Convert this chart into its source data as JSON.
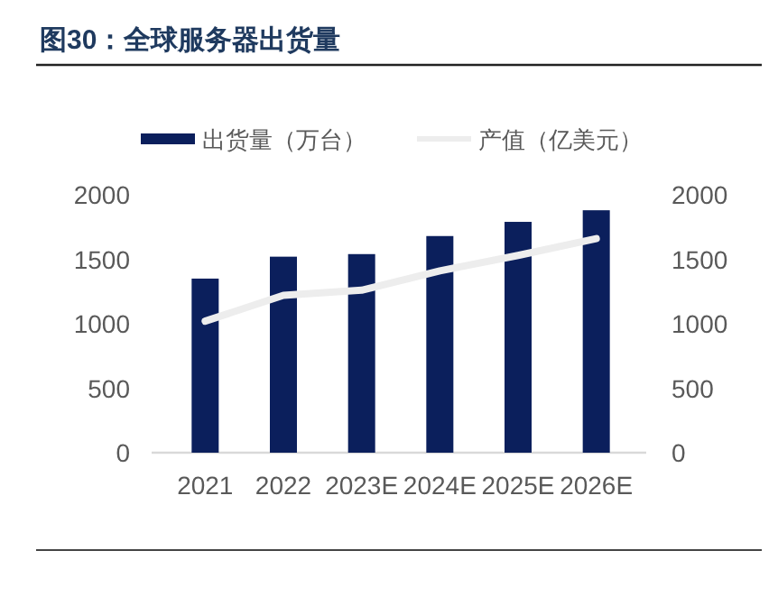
{
  "chart_data": {
    "type": "bar",
    "title": "图30：全球服务器出货量",
    "categories": [
      "2021",
      "2022",
      "2023E",
      "2024E",
      "2025E",
      "2026E"
    ],
    "series": [
      {
        "name": "出货量（万台）",
        "color": "#0b1f5c",
        "values": [
          1350,
          1520,
          1540,
          1680,
          1790,
          1880
        ]
      },
      {
        "name": "产值（亿美元）",
        "type": "line",
        "axis": "y2",
        "color": "#ededed",
        "values": [
          1020,
          1220,
          1260,
          1410,
          1530,
          1660
        ]
      }
    ],
    "ylim": [
      0,
      2000
    ],
    "yticks": [
      0,
      500,
      1000,
      1500,
      2000
    ],
    "y2lim": [
      0,
      2000
    ],
    "y2ticks": [
      0,
      500,
      1000,
      1500,
      2000
    ],
    "legend": "top",
    "grid": false
  }
}
